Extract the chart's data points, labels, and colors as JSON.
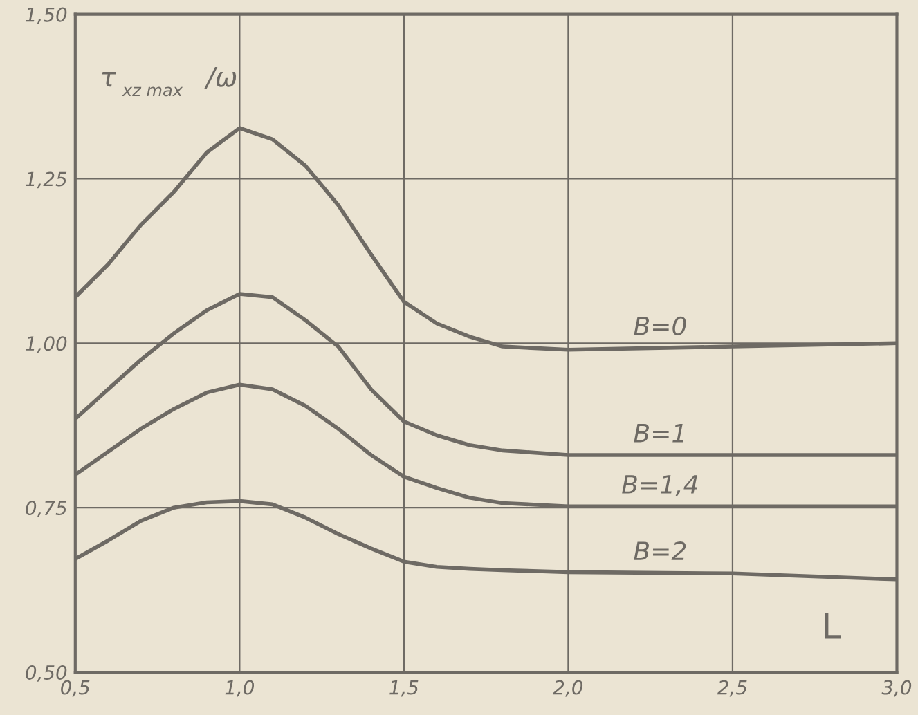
{
  "chart_data": {
    "type": "line",
    "ylabel": "τ$_{xz max}$/ω",
    "xlabel": "L",
    "xlim": [
      0.5,
      3.0
    ],
    "xticks": [
      {
        "value": 0.5,
        "label": "0,5"
      },
      {
        "value": 1.0,
        "label": "1,0"
      },
      {
        "value": 1.5,
        "label": "1,5"
      },
      {
        "value": 2.0,
        "label": "2,0"
      },
      {
        "value": 2.5,
        "label": "2,5"
      },
      {
        "value": 3.0,
        "label": "3,0"
      }
    ],
    "ylim": [
      0.5,
      1.5
    ],
    "yticks": [
      {
        "value": 0.5,
        "label": "0,50"
      },
      {
        "value": 0.75,
        "label": "0,75"
      },
      {
        "value": 1.0,
        "label": "1,00"
      },
      {
        "value": 1.25,
        "label": "1,25"
      },
      {
        "value": 1.5,
        "label": "1,50"
      }
    ],
    "grid": true,
    "legend": false,
    "marker": "none",
    "line_style": "solid",
    "x": [
      0.5,
      0.6,
      0.7,
      0.8,
      0.9,
      1.0,
      1.1,
      1.2,
      1.3,
      1.4,
      1.5,
      1.6,
      1.7,
      1.8,
      2.0,
      2.5,
      3.0
    ],
    "series": [
      {
        "name": "B=0",
        "color": "#6e6a64",
        "values": [
          1.07,
          1.12,
          1.18,
          1.23,
          1.29,
          1.327,
          1.31,
          1.27,
          1.21,
          1.135,
          1.063,
          1.03,
          1.01,
          0.995,
          0.99,
          0.995,
          1.0
        ]
      },
      {
        "name": "B=1",
        "color": "#6e6a64",
        "values": [
          0.885,
          0.93,
          0.975,
          1.015,
          1.05,
          1.075,
          1.07,
          1.035,
          0.995,
          0.93,
          0.881,
          0.86,
          0.845,
          0.837,
          0.83,
          0.83,
          0.83
        ]
      },
      {
        "name": "B=1,4",
        "color": "#6e6a64",
        "values": [
          0.8,
          0.835,
          0.87,
          0.9,
          0.925,
          0.937,
          0.93,
          0.905,
          0.87,
          0.83,
          0.797,
          0.78,
          0.765,
          0.757,
          0.752,
          0.752,
          0.752
        ]
      },
      {
        "name": "B=2",
        "color": "#6e6a64",
        "values": [
          0.672,
          0.7,
          0.73,
          0.75,
          0.758,
          0.76,
          0.755,
          0.735,
          0.71,
          0.688,
          0.668,
          0.66,
          0.657,
          0.655,
          0.652,
          0.65,
          0.641
        ]
      }
    ]
  }
}
